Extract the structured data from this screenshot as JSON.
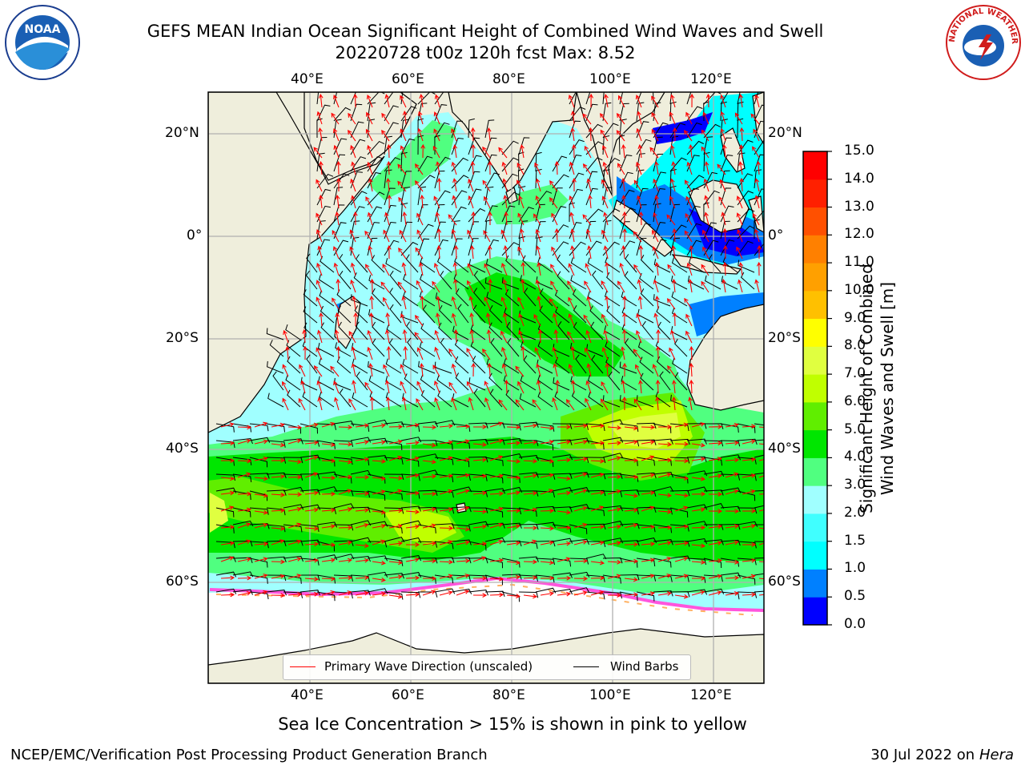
{
  "title": {
    "line1": "GEFS MEAN Indian Ocean Significant Height of Combined Wind Waves and Swell",
    "line2": "20220728 t00z 120h fcst   Max: 8.52"
  },
  "logos": {
    "left_text": "NOAA",
    "right_text": "NATIONAL WEATHER SERVICE"
  },
  "map": {
    "lon_labels": [
      "40°E",
      "60°E",
      "80°E",
      "100°E",
      "120°E"
    ],
    "lat_labels": [
      "20°N",
      "0°",
      "20°S",
      "40°S",
      "60°S"
    ],
    "colors": {
      "land": "#efeedc",
      "ice": "#ffffff",
      "grid": "#b0b0b0",
      "wave_arrow": "#ff0000",
      "wind_barb": "#000000"
    }
  },
  "colorbar": {
    "label_line1": "Significant Height of Combined",
    "label_line2": "Wind Waves and Swell [m]",
    "ticks": [
      "0.0",
      "0.5",
      "1.0",
      "1.5",
      "2.0",
      "3.0",
      "4.0",
      "5.0",
      "6.0",
      "7.0",
      "8.0",
      "9.0",
      "10.0",
      "11.0",
      "12.0",
      "13.0",
      "14.0",
      "15.0"
    ],
    "colors": [
      "#0000ff",
      "#0080ff",
      "#00ffff",
      "#40ffff",
      "#a0ffff",
      "#50ff80",
      "#00e600",
      "#60ee00",
      "#c0ff00",
      "#e0ff40",
      "#ffff00",
      "#ffc000",
      "#ffa000",
      "#ff8000",
      "#ff5000",
      "#ff2000",
      "#ff0000"
    ]
  },
  "legend": {
    "wave_label": "Primary Wave Direction (unscaled)",
    "barb_label": "Wind Barbs"
  },
  "caption": "Sea Ice Concentration > 15% is shown in pink to yellow",
  "footer": {
    "left": "NCEP/EMC/Verification Post Processing Product Generation Branch",
    "right_date": "30 Jul 2022 on ",
    "right_host": "Hera"
  }
}
